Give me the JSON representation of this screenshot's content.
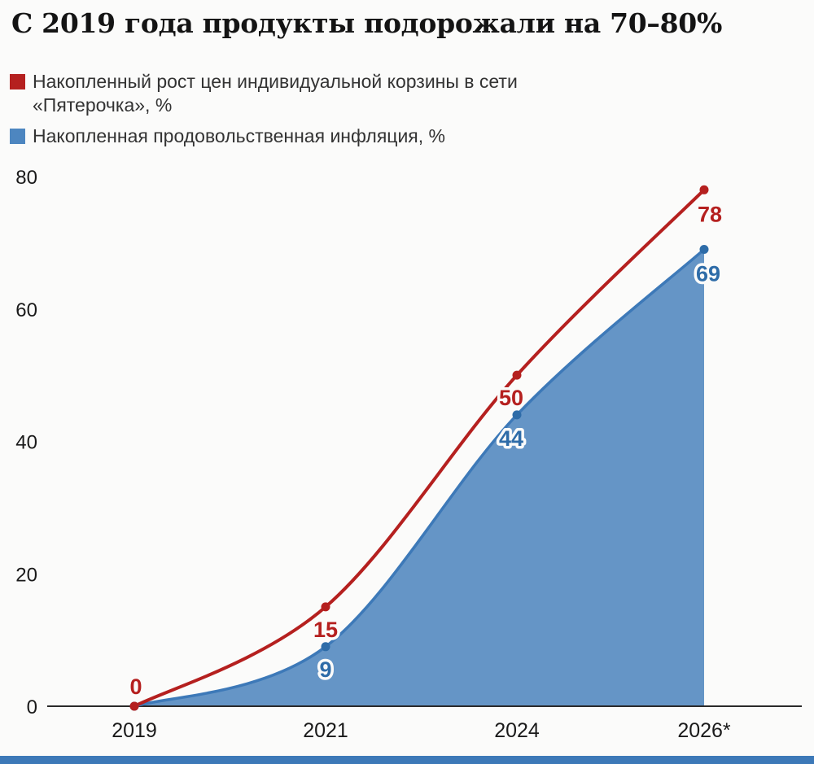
{
  "page": {
    "title": "С 2019 года продукты подорожали на 70–80%",
    "accent_bar_color": "#3d79b8"
  },
  "legend": [
    {
      "id": "pyaterochka-basket",
      "label": "Накопленный рост цен индивидуальной корзины в сети «Пятерочка», %",
      "color": "#b5201f"
    },
    {
      "id": "food-inflation",
      "label": "Накопленная продовольственная инфляция, %",
      "color": "#4d86c0"
    }
  ],
  "chart_data": {
    "type": "line",
    "x": [
      "2019",
      "2021",
      "2024",
      "2026*"
    ],
    "series": [
      {
        "id": "pyaterochka-basket",
        "name": "Накопленный рост цен индивидуальной корзины в сети «Пятерочка», %",
        "values": [
          0,
          15,
          50,
          78
        ],
        "point_labels": [
          "0",
          "15",
          "50",
          "78"
        ],
        "color": "#b5201f",
        "label_color": "#b5201f",
        "area": false
      },
      {
        "id": "food-inflation",
        "name": "Накопленная продовольственная инфляция, %",
        "values": [
          0,
          9,
          44,
          69
        ],
        "point_labels": [
          "",
          "9",
          "44",
          "69"
        ],
        "color": "#3d79b8",
        "dot_color": "#2e6ca8",
        "label_color": "#2e6ca8",
        "area": true,
        "area_color": "#5d8fc3"
      }
    ],
    "ylim": [
      0,
      80
    ],
    "yticks": [
      0,
      20,
      40,
      60,
      80
    ],
    "grid": false,
    "legend_position": "top-left"
  }
}
